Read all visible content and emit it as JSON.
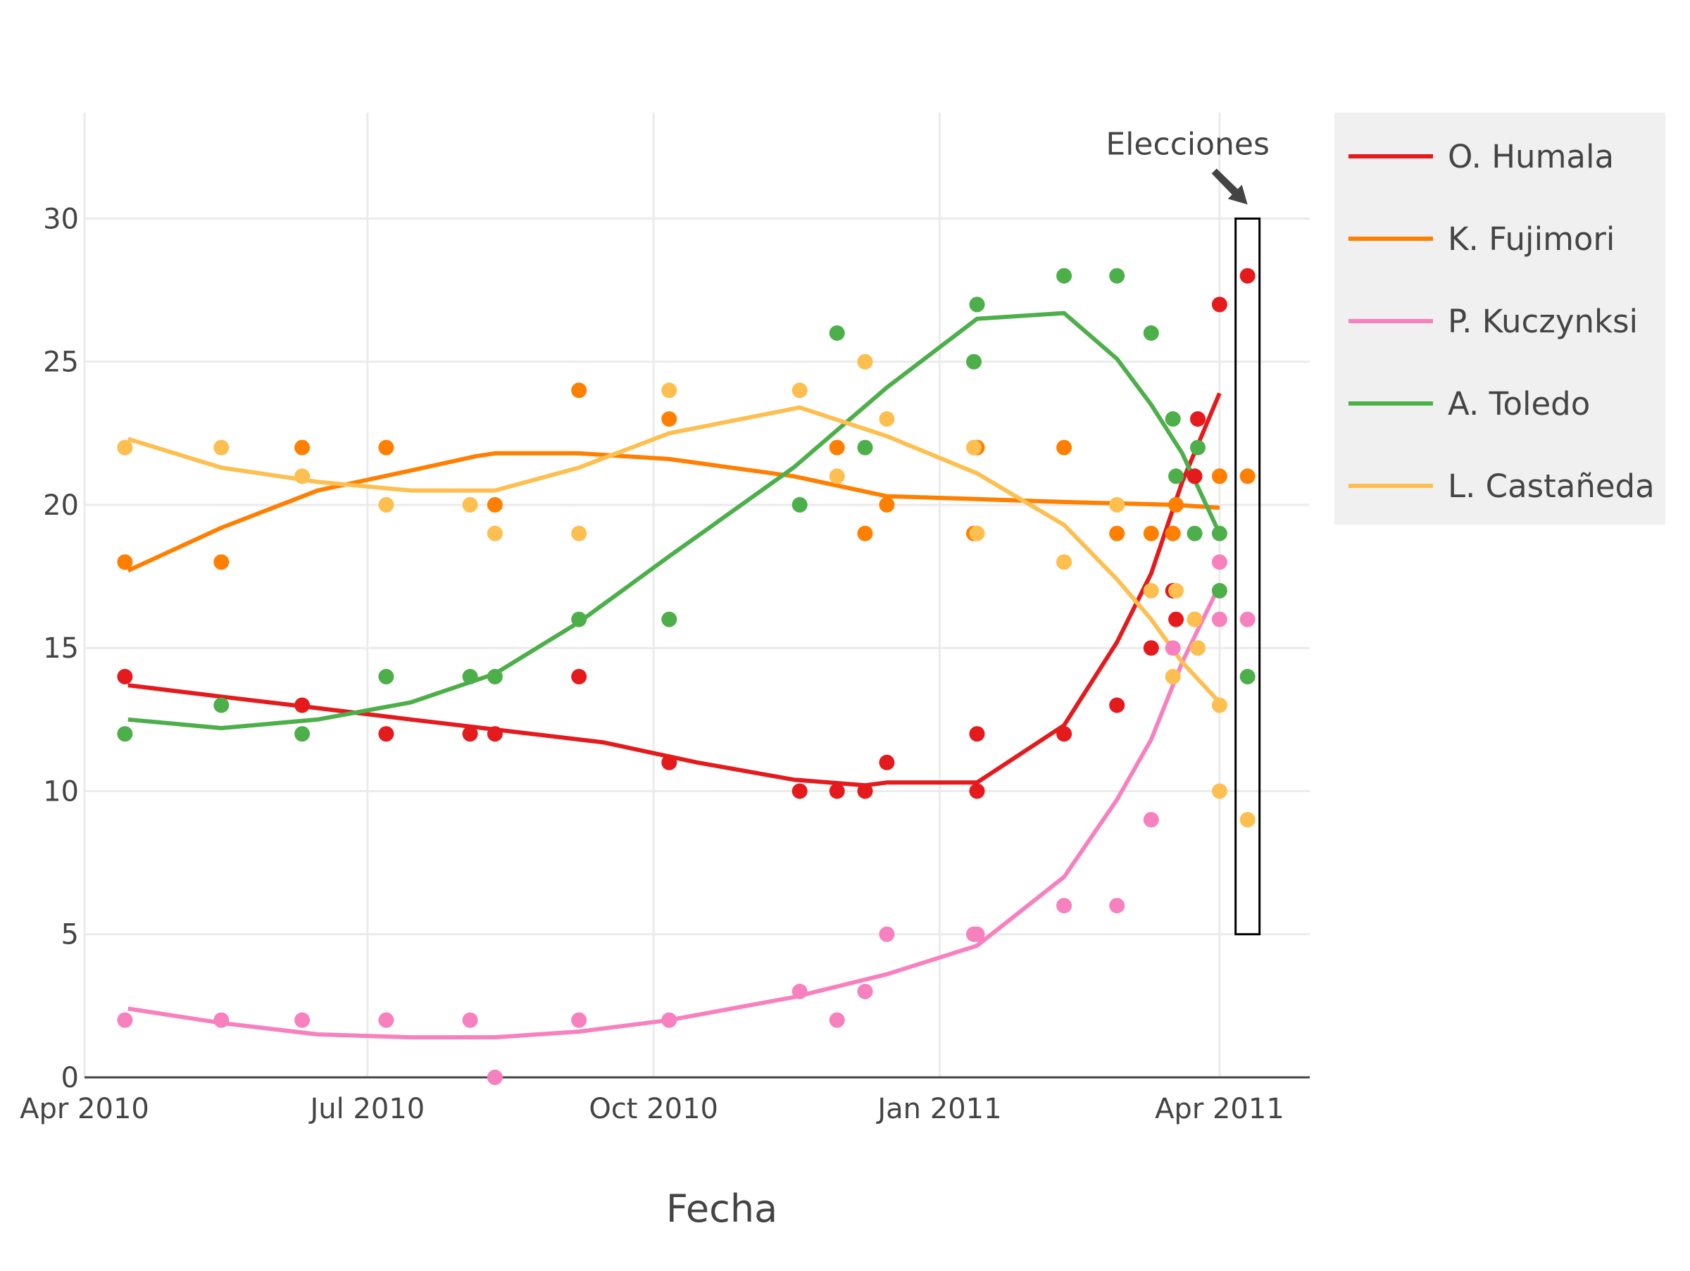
{
  "chart_data": {
    "type": "line",
    "title": "",
    "xlabel": "Fecha",
    "ylabel": "",
    "xlim": [
      "2010-04-01",
      "2011-04-30"
    ],
    "ylim": [
      0,
      33.7
    ],
    "grid": true,
    "legend_position": "top-right",
    "x_ticks": [
      {
        "date": "2010-04-01",
        "label": "Apr 2010"
      },
      {
        "date": "2010-07-01",
        "label": "Jul 2010"
      },
      {
        "date": "2010-10-01",
        "label": "Oct 2010"
      },
      {
        "date": "2011-01-01",
        "label": "Jan 2011"
      },
      {
        "date": "2011-04-01",
        "label": "Apr 2011"
      }
    ],
    "y_ticks": [
      {
        "value": 0,
        "label": "0"
      },
      {
        "value": 5,
        "label": "5"
      },
      {
        "value": 10,
        "label": "10"
      },
      {
        "value": 15,
        "label": "15"
      },
      {
        "value": 20,
        "label": "20"
      },
      {
        "value": 25,
        "label": "25"
      },
      {
        "value": 30,
        "label": "30"
      }
    ],
    "annotation": {
      "text": "Elecciones",
      "x": "2011-04-10",
      "box_ymin": 5,
      "box_ymax": 30
    },
    "series": [
      {
        "name": "O. Humala",
        "color": "#e41a1c",
        "points": [
          [
            "2010-04-14",
            14
          ],
          [
            "2010-06-10",
            13
          ],
          [
            "2010-07-07",
            12
          ],
          [
            "2010-08-03",
            12
          ],
          [
            "2010-08-11",
            12
          ],
          [
            "2010-09-07",
            14
          ],
          [
            "2010-10-06",
            11
          ],
          [
            "2010-11-17",
            10
          ],
          [
            "2010-11-29",
            10
          ],
          [
            "2010-12-08",
            10
          ],
          [
            "2010-12-15",
            11
          ],
          [
            "2011-01-13",
            12
          ],
          [
            "2011-01-13",
            10
          ],
          [
            "2011-02-10",
            12
          ],
          [
            "2011-02-27",
            13
          ],
          [
            "2011-03-10",
            15
          ],
          [
            "2011-03-17",
            17
          ],
          [
            "2011-03-18",
            16
          ],
          [
            "2011-03-24",
            21
          ],
          [
            "2011-03-25",
            23
          ],
          [
            "2011-04-01",
            27
          ],
          [
            "2011-04-10",
            28
          ]
        ],
        "trend": [
          [
            "2010-04-15",
            13.7
          ],
          [
            "2010-05-15",
            13.3
          ],
          [
            "2010-06-15",
            12.9
          ],
          [
            "2010-07-15",
            12.5
          ],
          [
            "2010-08-15",
            12.1
          ],
          [
            "2010-09-15",
            11.7
          ],
          [
            "2010-10-15",
            11.0
          ],
          [
            "2010-11-15",
            10.4
          ],
          [
            "2010-12-08",
            10.2
          ],
          [
            "2010-12-15",
            10.3
          ],
          [
            "2011-01-13",
            10.3
          ],
          [
            "2011-02-10",
            12.3
          ],
          [
            "2011-02-27",
            15.2
          ],
          [
            "2011-03-10",
            17.6
          ],
          [
            "2011-03-20",
            20.8
          ],
          [
            "2011-04-01",
            23.9
          ]
        ]
      },
      {
        "name": "K. Fujimori",
        "color": "#ff7f00",
        "points": [
          [
            "2010-04-14",
            18
          ],
          [
            "2010-05-15",
            18
          ],
          [
            "2010-06-10",
            22
          ],
          [
            "2010-07-07",
            22
          ],
          [
            "2010-08-11",
            20
          ],
          [
            "2010-09-07",
            24
          ],
          [
            "2010-10-06",
            23
          ],
          [
            "2010-11-29",
            22
          ],
          [
            "2010-12-08",
            19
          ],
          [
            "2010-12-15",
            20
          ],
          [
            "2011-01-12",
            19
          ],
          [
            "2011-01-13",
            22
          ],
          [
            "2011-02-10",
            22
          ],
          [
            "2011-02-27",
            19
          ],
          [
            "2011-03-10",
            19
          ],
          [
            "2011-03-17",
            19
          ],
          [
            "2011-03-18",
            20
          ],
          [
            "2011-04-01",
            21
          ],
          [
            "2011-04-10",
            21
          ]
        ],
        "trend": [
          [
            "2010-04-15",
            17.7
          ],
          [
            "2010-05-15",
            19.2
          ],
          [
            "2010-06-15",
            20.5
          ],
          [
            "2010-07-15",
            21.2
          ],
          [
            "2010-08-05",
            21.7
          ],
          [
            "2010-08-11",
            21.8
          ],
          [
            "2010-09-07",
            21.8
          ],
          [
            "2010-10-06",
            21.6
          ],
          [
            "2010-11-15",
            21.0
          ],
          [
            "2010-12-15",
            20.3
          ],
          [
            "2011-01-13",
            20.2
          ],
          [
            "2011-02-10",
            20.1
          ],
          [
            "2011-03-17",
            20.0
          ],
          [
            "2011-04-01",
            19.9
          ]
        ]
      },
      {
        "name": "P. Kuczynksi",
        "color": "#f781bf",
        "points": [
          [
            "2010-04-14",
            2
          ],
          [
            "2010-05-15",
            2
          ],
          [
            "2010-06-10",
            2
          ],
          [
            "2010-07-07",
            2
          ],
          [
            "2010-08-03",
            2
          ],
          [
            "2010-08-11",
            0
          ],
          [
            "2010-09-07",
            2
          ],
          [
            "2010-10-06",
            2
          ],
          [
            "2010-11-17",
            3
          ],
          [
            "2010-11-29",
            2
          ],
          [
            "2010-12-08",
            3
          ],
          [
            "2010-12-15",
            5
          ],
          [
            "2011-01-12",
            5
          ],
          [
            "2011-01-13",
            5
          ],
          [
            "2011-02-10",
            6
          ],
          [
            "2011-02-27",
            6
          ],
          [
            "2011-03-10",
            9
          ],
          [
            "2011-03-17",
            15
          ],
          [
            "2011-03-24",
            16
          ],
          [
            "2011-04-01",
            18
          ],
          [
            "2011-04-01",
            16
          ],
          [
            "2011-04-10",
            16
          ]
        ],
        "trend": [
          [
            "2010-04-15",
            2.4
          ],
          [
            "2010-05-15",
            1.9
          ],
          [
            "2010-06-15",
            1.5
          ],
          [
            "2010-07-15",
            1.4
          ],
          [
            "2010-08-11",
            1.4
          ],
          [
            "2010-09-07",
            1.6
          ],
          [
            "2010-10-06",
            2.0
          ],
          [
            "2010-11-15",
            2.8
          ],
          [
            "2010-12-15",
            3.6
          ],
          [
            "2011-01-13",
            4.6
          ],
          [
            "2011-02-10",
            7.0
          ],
          [
            "2011-02-27",
            9.7
          ],
          [
            "2011-03-10",
            11.8
          ],
          [
            "2011-03-20",
            14.5
          ],
          [
            "2011-04-01",
            17.2
          ]
        ]
      },
      {
        "name": "A. Toledo",
        "color": "#4daf4a",
        "points": [
          [
            "2010-04-14",
            12
          ],
          [
            "2010-05-15",
            13
          ],
          [
            "2010-06-10",
            12
          ],
          [
            "2010-07-07",
            14
          ],
          [
            "2010-08-03",
            14
          ],
          [
            "2010-08-11",
            14
          ],
          [
            "2010-09-07",
            16
          ],
          [
            "2010-10-06",
            16
          ],
          [
            "2010-11-17",
            20
          ],
          [
            "2010-11-29",
            26
          ],
          [
            "2010-12-08",
            22
          ],
          [
            "2011-01-12",
            25
          ],
          [
            "2011-01-13",
            27
          ],
          [
            "2011-02-10",
            28
          ],
          [
            "2011-02-27",
            28
          ],
          [
            "2011-03-10",
            26
          ],
          [
            "2011-03-17",
            23
          ],
          [
            "2011-03-18",
            21
          ],
          [
            "2011-03-24",
            19
          ],
          [
            "2011-03-25",
            22
          ],
          [
            "2011-04-01",
            19
          ],
          [
            "2011-04-01",
            17
          ],
          [
            "2011-04-10",
            14
          ]
        ],
        "trend": [
          [
            "2010-04-15",
            12.5
          ],
          [
            "2010-05-15",
            12.2
          ],
          [
            "2010-06-15",
            12.5
          ],
          [
            "2010-07-15",
            13.1
          ],
          [
            "2010-08-11",
            14.1
          ],
          [
            "2010-09-07",
            15.9
          ],
          [
            "2010-10-06",
            18.2
          ],
          [
            "2010-11-15",
            21.3
          ],
          [
            "2010-12-15",
            24.1
          ],
          [
            "2011-01-13",
            26.5
          ],
          [
            "2011-02-10",
            26.7
          ],
          [
            "2011-02-27",
            25.1
          ],
          [
            "2011-03-10",
            23.5
          ],
          [
            "2011-03-20",
            21.8
          ],
          [
            "2011-04-01",
            19.0
          ]
        ]
      },
      {
        "name": "L. Castañeda",
        "color": "#fdbf4f",
        "points": [
          [
            "2010-04-14",
            22
          ],
          [
            "2010-05-15",
            22
          ],
          [
            "2010-06-10",
            21
          ],
          [
            "2010-07-07",
            20
          ],
          [
            "2010-08-03",
            20
          ],
          [
            "2010-08-11",
            19
          ],
          [
            "2010-09-07",
            19
          ],
          [
            "2010-10-06",
            24
          ],
          [
            "2010-11-17",
            24
          ],
          [
            "2010-11-29",
            21
          ],
          [
            "2010-12-08",
            25
          ],
          [
            "2010-12-15",
            23
          ],
          [
            "2011-01-12",
            22
          ],
          [
            "2011-01-13",
            19
          ],
          [
            "2011-02-10",
            18
          ],
          [
            "2011-02-27",
            20
          ],
          [
            "2011-03-10",
            17
          ],
          [
            "2011-03-17",
            14
          ],
          [
            "2011-03-18",
            17
          ],
          [
            "2011-03-24",
            16
          ],
          [
            "2011-03-25",
            15
          ],
          [
            "2011-04-01",
            13
          ],
          [
            "2011-04-01",
            10
          ],
          [
            "2011-04-10",
            9
          ]
        ],
        "trend": [
          [
            "2010-04-15",
            22.3
          ],
          [
            "2010-05-15",
            21.3
          ],
          [
            "2010-06-15",
            20.8
          ],
          [
            "2010-07-15",
            20.5
          ],
          [
            "2010-08-11",
            20.5
          ],
          [
            "2010-09-07",
            21.3
          ],
          [
            "2010-10-06",
            22.5
          ],
          [
            "2010-11-17",
            23.4
          ],
          [
            "2010-12-15",
            22.4
          ],
          [
            "2011-01-13",
            21.1
          ],
          [
            "2011-02-10",
            19.3
          ],
          [
            "2011-02-27",
            17.4
          ],
          [
            "2011-03-10",
            16.0
          ],
          [
            "2011-03-20",
            14.5
          ],
          [
            "2011-04-01",
            13.1
          ]
        ]
      }
    ]
  }
}
